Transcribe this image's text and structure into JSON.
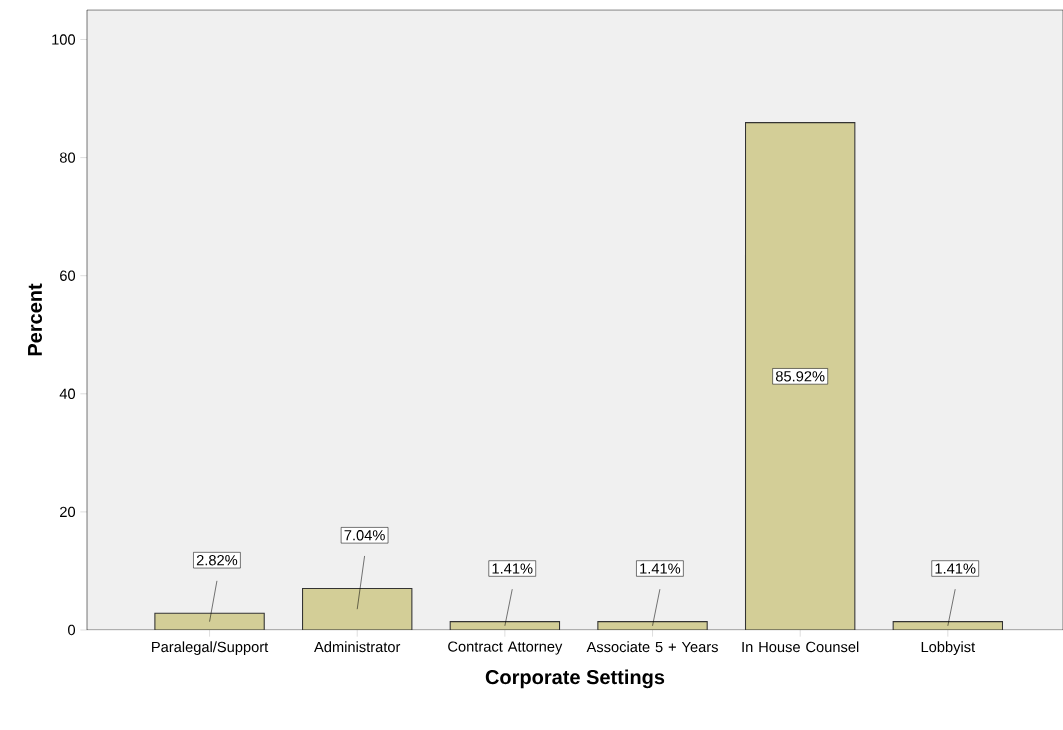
{
  "chart_data": {
    "type": "bar",
    "xlabel": "Corporate Settings",
    "ylabel": "Percent",
    "categories": [
      "Paralegal/Support",
      "Administrator",
      "Contract Attorney",
      "Associate 5 + Years",
      "In House Counsel",
      "Lobbyist"
    ],
    "values": [
      2.82,
      7.04,
      1.41,
      1.41,
      85.92,
      1.41
    ],
    "value_labels": [
      "2.82%",
      "7.04%",
      "1.41%",
      "1.41%",
      "85.92%",
      "1.41%"
    ],
    "color": "#d3ce97",
    "ylim": [
      0,
      105
    ],
    "yticks": [
      0,
      20,
      40,
      60,
      80,
      100
    ],
    "grid": false
  }
}
